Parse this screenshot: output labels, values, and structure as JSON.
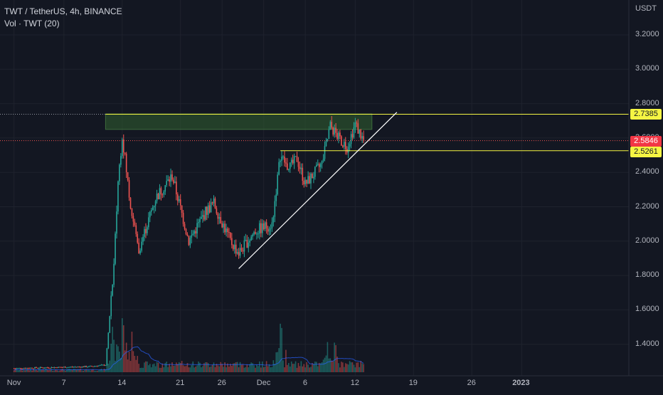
{
  "legend": {
    "symbol_line": "TWT / TetherUS, 4h, BINANCE",
    "volume_line": "Vol · TWT (20)"
  },
  "price_axis": {
    "currency": "USDT",
    "ticks": [
      "3.2000",
      "3.0000",
      "2.8000",
      "2.6000",
      "2.4000",
      "2.2000",
      "2.0000",
      "1.8000",
      "1.6000",
      "1.4000"
    ]
  },
  "time_axis": {
    "ticks": [
      "Nov",
      "7",
      "14",
      "21",
      "26",
      "Dec",
      "6",
      "12",
      "19",
      "26",
      "2023"
    ]
  },
  "price_tags": {
    "resistance": "2.7385",
    "last_price": "2.5846",
    "support": "2.5261"
  },
  "colors": {
    "background": "#131722",
    "up": "#26a69a",
    "down": "#ef5350",
    "drawing_yellow": "#f5f543",
    "trendline": "#ffffff",
    "zone_fill": "#2e5a2e"
  },
  "chart_data": {
    "type": "candlestick",
    "symbol": "TWT / TetherUS",
    "interval": "4h",
    "exchange": "BINANCE",
    "y_range": [
      1.22,
      3.4
    ],
    "key_levels": {
      "resistance": 2.7385,
      "last": 2.5846,
      "support": 2.5261
    },
    "price_path": [
      {
        "date": "2022-11-01",
        "price": 1.26
      },
      {
        "date": "2022-11-10",
        "price": 1.27
      },
      {
        "date": "2022-11-12",
        "price": 1.28
      },
      {
        "date": "2022-11-13",
        "price": 1.85
      },
      {
        "date": "2022-11-13 12:00",
        "price": 2.35
      },
      {
        "date": "2022-11-14",
        "price": 2.62
      },
      {
        "date": "2022-11-15",
        "price": 2.2
      },
      {
        "date": "2022-11-16",
        "price": 1.95
      },
      {
        "date": "2022-11-18",
        "price": 2.25
      },
      {
        "date": "2022-11-20",
        "price": 2.38
      },
      {
        "date": "2022-11-22",
        "price": 2.0
      },
      {
        "date": "2022-11-24",
        "price": 2.17
      },
      {
        "date": "2022-11-25",
        "price": 2.22
      },
      {
        "date": "2022-11-27",
        "price": 2.0
      },
      {
        "date": "2022-11-28",
        "price": 1.93
      },
      {
        "date": "2022-11-30",
        "price": 2.06
      },
      {
        "date": "2022-12-02",
        "price": 2.1
      },
      {
        "date": "2022-12-03",
        "price": 2.5
      },
      {
        "date": "2022-12-04",
        "price": 2.42
      },
      {
        "date": "2022-12-05",
        "price": 2.48
      },
      {
        "date": "2022-12-06",
        "price": 2.33
      },
      {
        "date": "2022-12-08",
        "price": 2.45
      },
      {
        "date": "2022-12-09",
        "price": 2.67
      },
      {
        "date": "2022-12-10",
        "price": 2.6
      },
      {
        "date": "2022-12-11",
        "price": 2.55
      },
      {
        "date": "2022-12-12",
        "price": 2.68
      },
      {
        "date": "2022-12-13",
        "price": 2.5846
      }
    ],
    "volume": {
      "description": "Volume histogram at chart bottom with 20-period MA",
      "spike_dates": [
        "2022-11-13",
        "2022-11-14",
        "2022-11-15",
        "2022-12-03",
        "2022-12-09"
      ]
    },
    "drawings": [
      {
        "type": "rectangle",
        "label": "resistance-zone",
        "from": "2022-11-12",
        "to": "2022-12-14",
        "top": 2.74,
        "bottom": 2.65
      },
      {
        "type": "horizontal-ray",
        "label": "resistance-line",
        "value": 2.7385
      },
      {
        "type": "horizontal-ray",
        "label": "support-line",
        "value": 2.5261
      },
      {
        "type": "trendline",
        "label": "ascending-trendline",
        "from": {
          "date": "2022-11-28",
          "price": 1.84
        },
        "to": {
          "date": "2022-12-17",
          "price": 2.75
        }
      }
    ]
  }
}
